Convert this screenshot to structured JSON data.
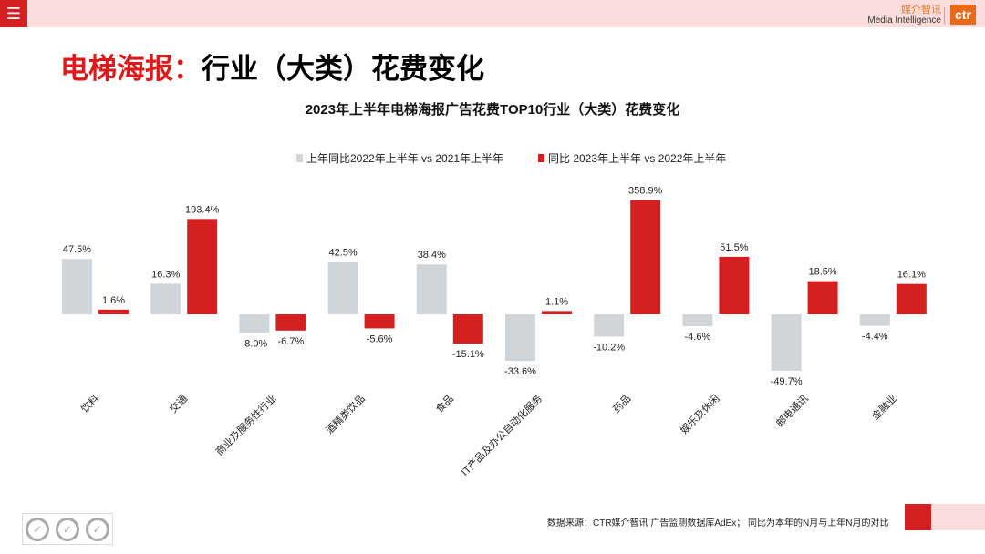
{
  "header": {
    "menu_icon": "hamburger-icon",
    "logo_cn": "媒介智讯",
    "logo_en": "Media Intelligence",
    "logo_mark": "ctr"
  },
  "page_title_red": "电梯海报：",
  "page_title_black": "行业（大类）花费变化",
  "chart_data": {
    "type": "bar",
    "title": "2023年上半年电梯海报广告花费TOP10行业（大类）花费变化",
    "categories": [
      "饮料",
      "交通",
      "商业及服务性行业",
      "酒精类饮品",
      "食品",
      "IT产品及办公自动化服务",
      "药品",
      "娱乐及休闲",
      "邮电通讯",
      "金融业"
    ],
    "series": [
      {
        "name": "上年同比2022年上半年 vs 2021年上半年",
        "color": "#cfd5d8",
        "values": [
          47.5,
          16.3,
          -8.0,
          42.5,
          38.4,
          -33.6,
          -10.2,
          -4.6,
          -49.7,
          -4.4
        ],
        "labels": [
          "47.5%",
          "16.3%",
          "-8.0%",
          "42.5%",
          "38.4%",
          "-33.6%",
          "-10.2%",
          "-4.6%",
          "-49.7%",
          "-4.4%"
        ]
      },
      {
        "name": "同比 2023年上半年 vs 2022年上半年",
        "color": "#d42020",
        "values": [
          1.6,
          193.4,
          -6.7,
          -5.6,
          -15.1,
          1.1,
          358.9,
          51.5,
          18.5,
          16.1
        ],
        "labels": [
          "1.6%",
          "193.4%",
          "-6.7%",
          "-5.6%",
          "-15.1%",
          "1.1%",
          "358.9%",
          "51.5%",
          "18.5%",
          "16.1%"
        ]
      }
    ],
    "legend": "top",
    "grid": false,
    "unit": "%"
  },
  "footer": {
    "source": "数据来源：CTR媒介智讯 广告监测数据库AdEx；  同比为本年的N月与上年N月的对比"
  }
}
